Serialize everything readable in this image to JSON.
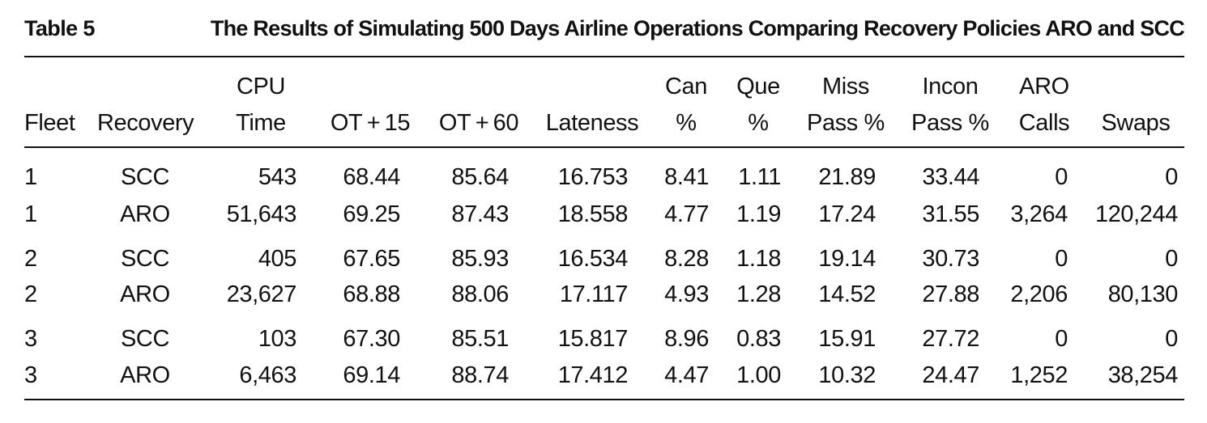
{
  "caption": {
    "label": "Table 5",
    "title": "The Results of Simulating 500 Days Airline Operations Comparing Recovery Policies ARO and SCC"
  },
  "table": {
    "headers": [
      {
        "line1": "",
        "line2": "Fleet"
      },
      {
        "line1": "",
        "line2": "Recovery"
      },
      {
        "line1": "CPU",
        "line2": "Time"
      },
      {
        "line1": "",
        "line2": "OT + 15"
      },
      {
        "line1": "",
        "line2": "OT + 60"
      },
      {
        "line1": "",
        "line2": "Lateness"
      },
      {
        "line1": "Can",
        "line2": "%"
      },
      {
        "line1": "Que",
        "line2": "%"
      },
      {
        "line1": "Miss",
        "line2": "Pass %"
      },
      {
        "line1": "Incon",
        "line2": "Pass %"
      },
      {
        "line1": "ARO",
        "line2": "Calls"
      },
      {
        "line1": "",
        "line2": "Swaps"
      }
    ],
    "rows": [
      [
        "1",
        "SCC",
        "543",
        "68.44",
        "85.64",
        "16.753",
        "8.41",
        "1.11",
        "21.89",
        "33.44",
        "0",
        "0"
      ],
      [
        "1",
        "ARO",
        "51,643",
        "69.25",
        "87.43",
        "18.558",
        "4.77",
        "1.19",
        "17.24",
        "31.55",
        "3,264",
        "120,244"
      ],
      [
        "2",
        "SCC",
        "405",
        "67.65",
        "85.93",
        "16.534",
        "8.28",
        "1.18",
        "19.14",
        "30.73",
        "0",
        "0"
      ],
      [
        "2",
        "ARO",
        "23,627",
        "68.88",
        "88.06",
        "17.117",
        "4.93",
        "1.28",
        "14.52",
        "27.88",
        "2,206",
        "80,130"
      ],
      [
        "3",
        "SCC",
        "103",
        "67.30",
        "85.51",
        "15.817",
        "8.96",
        "0.83",
        "15.91",
        "27.72",
        "0",
        "0"
      ],
      [
        "3",
        "ARO",
        "6,463",
        "69.14",
        "88.74",
        "17.412",
        "4.47",
        "1.00",
        "10.32",
        "24.47",
        "1,252",
        "38,254"
      ]
    ]
  }
}
